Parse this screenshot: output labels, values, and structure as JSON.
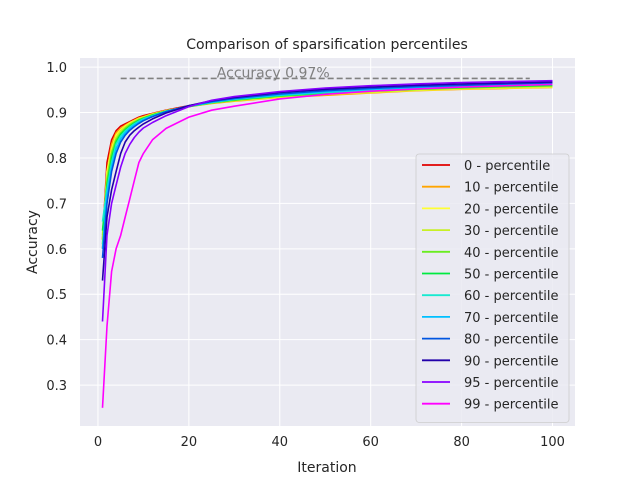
{
  "chart_data": {
    "type": "line",
    "title": "Comparison of sparsification percentiles",
    "xlabel": "Iteration",
    "ylabel": "Accuracy",
    "xlim": [
      -3.95,
      104.95
    ],
    "ylim": [
      0.21,
      1.02
    ],
    "xticks": [
      0,
      20,
      40,
      60,
      80,
      100
    ],
    "yticks": [
      0.3,
      0.4,
      0.5,
      0.6,
      0.7,
      0.8,
      0.9,
      1.0
    ],
    "xtick_labels": [
      "0",
      "20",
      "40",
      "60",
      "80",
      "100"
    ],
    "ytick_labels": [
      "0.3",
      "0.4",
      "0.5",
      "0.6",
      "0.7",
      "0.8",
      "0.9",
      "1.0"
    ],
    "grid": true,
    "background": "#eaeaf2",
    "legend": "center-right",
    "reference_line": {
      "label": "Accuracy 0.97%",
      "y": 0.975,
      "x_start": 5,
      "x_end": 95,
      "color": "#808080",
      "style": "dashed"
    },
    "x_points": [
      1,
      2,
      3,
      4,
      5,
      6,
      7,
      8,
      9,
      10,
      12,
      15,
      20,
      25,
      30,
      40,
      50,
      60,
      70,
      80,
      90,
      100
    ],
    "series": [
      {
        "name": "0 - percentile",
        "color": "#e00000",
        "values": [
          0.62,
          0.79,
          0.84,
          0.86,
          0.87,
          0.875,
          0.88,
          0.885,
          0.89,
          0.893,
          0.898,
          0.905,
          0.915,
          0.922,
          0.927,
          0.935,
          0.94,
          0.945,
          0.95,
          0.953,
          0.955,
          0.957
        ]
      },
      {
        "name": "10 - percentile",
        "color": "#ffa500",
        "values": [
          0.6,
          0.77,
          0.83,
          0.855,
          0.865,
          0.872,
          0.878,
          0.883,
          0.888,
          0.891,
          0.897,
          0.904,
          0.913,
          0.92,
          0.925,
          0.933,
          0.938,
          0.943,
          0.948,
          0.951,
          0.953,
          0.955
        ]
      },
      {
        "name": "20 - percentile",
        "color": "#ffff33",
        "values": [
          0.62,
          0.77,
          0.82,
          0.85,
          0.862,
          0.87,
          0.877,
          0.882,
          0.887,
          0.89,
          0.897,
          0.904,
          0.913,
          0.921,
          0.926,
          0.934,
          0.94,
          0.944,
          0.949,
          0.952,
          0.954,
          0.956
        ]
      },
      {
        "name": "30 - percentile",
        "color": "#c8f025",
        "values": [
          0.63,
          0.76,
          0.815,
          0.845,
          0.86,
          0.868,
          0.875,
          0.881,
          0.886,
          0.889,
          0.896,
          0.904,
          0.913,
          0.921,
          0.927,
          0.935,
          0.941,
          0.945,
          0.95,
          0.953,
          0.955,
          0.957
        ]
      },
      {
        "name": "40 - percentile",
        "color": "#6aed20",
        "values": [
          0.61,
          0.75,
          0.81,
          0.84,
          0.855,
          0.865,
          0.873,
          0.879,
          0.884,
          0.888,
          0.895,
          0.903,
          0.913,
          0.921,
          0.927,
          0.936,
          0.942,
          0.947,
          0.951,
          0.954,
          0.957,
          0.959
        ]
      },
      {
        "name": "50 - percentile",
        "color": "#00ea40",
        "values": [
          0.64,
          0.74,
          0.8,
          0.835,
          0.852,
          0.862,
          0.87,
          0.877,
          0.883,
          0.887,
          0.894,
          0.903,
          0.913,
          0.922,
          0.928,
          0.937,
          0.943,
          0.948,
          0.952,
          0.955,
          0.958,
          0.96
        ]
      },
      {
        "name": "60 - percentile",
        "color": "#17ead0",
        "values": [
          0.66,
          0.73,
          0.79,
          0.83,
          0.848,
          0.859,
          0.868,
          0.875,
          0.881,
          0.886,
          0.893,
          0.903,
          0.914,
          0.922,
          0.929,
          0.938,
          0.944,
          0.949,
          0.953,
          0.957,
          0.96,
          0.962
        ]
      },
      {
        "name": "70 - percentile",
        "color": "#00bfff",
        "values": [
          0.6,
          0.72,
          0.78,
          0.82,
          0.842,
          0.855,
          0.865,
          0.872,
          0.879,
          0.884,
          0.892,
          0.902,
          0.914,
          0.923,
          0.93,
          0.939,
          0.946,
          0.951,
          0.955,
          0.958,
          0.961,
          0.963
        ]
      },
      {
        "name": "80 - percentile",
        "color": "#0055e0",
        "values": [
          0.58,
          0.7,
          0.77,
          0.81,
          0.835,
          0.85,
          0.861,
          0.869,
          0.876,
          0.882,
          0.891,
          0.902,
          0.915,
          0.924,
          0.931,
          0.941,
          0.948,
          0.953,
          0.957,
          0.96,
          0.963,
          0.965
        ]
      },
      {
        "name": "90 - percentile",
        "color": "#2200aa",
        "values": [
          0.53,
          0.67,
          0.73,
          0.77,
          0.81,
          0.835,
          0.85,
          0.86,
          0.868,
          0.875,
          0.886,
          0.899,
          0.915,
          0.926,
          0.933,
          0.944,
          0.951,
          0.956,
          0.96,
          0.963,
          0.965,
          0.967
        ]
      },
      {
        "name": "95 - percentile",
        "color": "#8800ff",
        "values": [
          0.44,
          0.63,
          0.7,
          0.74,
          0.78,
          0.81,
          0.83,
          0.845,
          0.857,
          0.866,
          0.878,
          0.893,
          0.913,
          0.927,
          0.935,
          0.946,
          0.954,
          0.959,
          0.963,
          0.966,
          0.968,
          0.97
        ]
      },
      {
        "name": "99 - percentile",
        "color": "#ff00ff",
        "values": [
          0.25,
          0.43,
          0.55,
          0.6,
          0.63,
          0.67,
          0.71,
          0.75,
          0.79,
          0.81,
          0.84,
          0.865,
          0.89,
          0.905,
          0.914,
          0.93,
          0.94,
          0.947,
          0.952,
          0.956,
          0.959,
          0.962
        ]
      }
    ]
  }
}
